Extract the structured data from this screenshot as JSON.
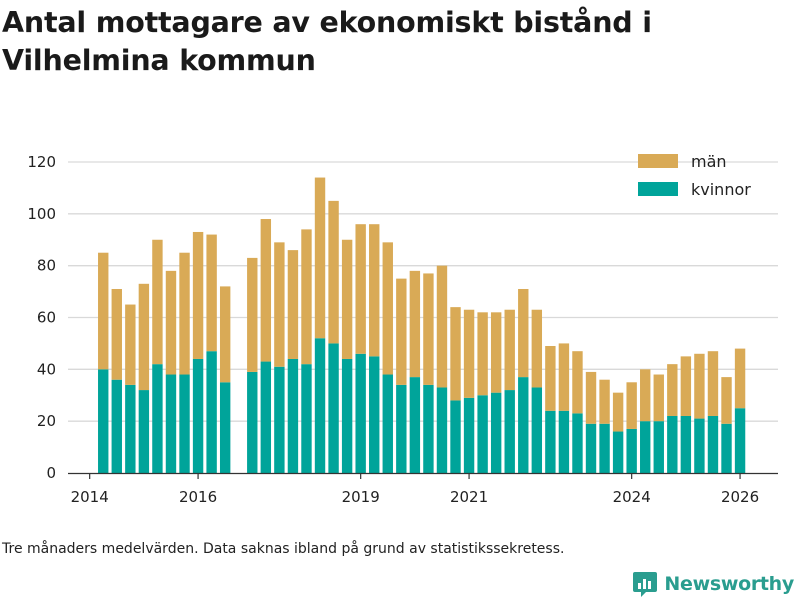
{
  "title": "Antal mottagare av ekonomiskt bistånd i Vilhelmina kommun",
  "note": "Tre månaders medelvärden. Data saknas ibland på grund av statistikssekretess.",
  "brand": "Newsworthy",
  "colors": {
    "men": "#d9aa56",
    "women": "#00a49a",
    "grid": "#d9d9d9",
    "axis": "#333333",
    "brand": "#2a9d8f"
  },
  "chart_data": {
    "type": "bar",
    "stacked": true,
    "title": "Antal mottagare av ekonomiskt bistånd i Vilhelmina kommun",
    "xlabel": "",
    "ylabel": "",
    "ylim": [
      0,
      120
    ],
    "yticks": [
      0,
      20,
      40,
      60,
      80,
      100,
      120
    ],
    "xlim": [
      2013.6,
      2026.7
    ],
    "xticks": [
      2014,
      2016,
      2019,
      2021,
      2024,
      2026
    ],
    "legend": "top-right",
    "grid": true,
    "x": [
      2014.25,
      2014.5,
      2014.75,
      2015.0,
      2015.25,
      2015.5,
      2015.75,
      2016.0,
      2016.25,
      2016.5,
      2017.0,
      2017.25,
      2017.5,
      2017.75,
      2018.0,
      2018.25,
      2018.5,
      2018.75,
      2019.0,
      2019.25,
      2019.5,
      2019.75,
      2020.0,
      2020.25,
      2020.5,
      2020.75,
      2021.0,
      2021.25,
      2021.5,
      2021.75,
      2022.0,
      2022.25,
      2022.5,
      2022.75,
      2023.0,
      2023.25,
      2023.5,
      2023.75,
      2024.0,
      2024.25,
      2024.5,
      2024.75,
      2025.0,
      2025.25,
      2025.5,
      2025.75,
      2026.0
    ],
    "series": [
      {
        "name": "kvinnor",
        "values": [
          40,
          36,
          34,
          32,
          42,
          38,
          38,
          44,
          47,
          35,
          39,
          43,
          41,
          44,
          42,
          52,
          50,
          44,
          46,
          45,
          38,
          34,
          37,
          34,
          33,
          28,
          29,
          30,
          31,
          32,
          37,
          33,
          24,
          24,
          23,
          19,
          19,
          16,
          17,
          20,
          20,
          22,
          22,
          21,
          22,
          19,
          25
        ]
      },
      {
        "name": "män",
        "values": [
          45,
          35,
          31,
          41,
          48,
          40,
          47,
          49,
          45,
          37,
          44,
          55,
          48,
          42,
          52,
          62,
          55,
          46,
          50,
          51,
          51,
          41,
          41,
          43,
          47,
          36,
          34,
          32,
          31,
          31,
          34,
          30,
          25,
          26,
          24,
          20,
          17,
          15,
          18,
          20,
          18,
          20,
          23,
          25,
          25,
          18,
          23
        ]
      }
    ]
  }
}
